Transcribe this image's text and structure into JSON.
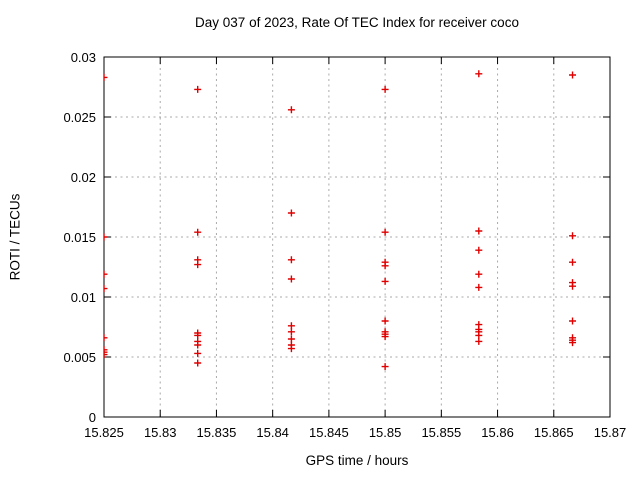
{
  "page": {
    "background": "#ffffff"
  },
  "chart_data": {
    "type": "scatter",
    "title": "Day 037 of 2023, Rate Of TEC Index for receiver coco",
    "xlabel": "GPS time / hours",
    "ylabel": "ROTI / TECUs",
    "xlim": [
      15.825,
      15.87
    ],
    "ylim": [
      0,
      0.03
    ],
    "xticks": {
      "values": [
        15.825,
        15.83,
        15.835,
        15.84,
        15.845,
        15.85,
        15.855,
        15.86,
        15.865,
        15.87
      ],
      "labels": [
        "15.825",
        "15.83",
        "15.835",
        "15.84",
        "15.845",
        "15.85",
        "15.855",
        "15.86",
        "15.865",
        "15.87"
      ]
    },
    "yticks": {
      "values": [
        0,
        0.005,
        0.01,
        0.015,
        0.02,
        0.025,
        0.03
      ],
      "labels": [
        "0",
        "0.005",
        "0.01",
        "0.015",
        "0.02",
        "0.025",
        "0.03"
      ]
    },
    "grid": true,
    "legend": "none",
    "marker": {
      "shape": "plus",
      "color": "#e00000",
      "size": 7
    },
    "axis_color": "#000000",
    "grid_color": "#aaaaaa",
    "series": [
      {
        "name": "roti",
        "points": [
          [
            15.825,
            0.0283
          ],
          [
            15.825,
            0.015
          ],
          [
            15.825,
            0.0119
          ],
          [
            15.825,
            0.0107
          ],
          [
            15.825,
            0.0066
          ],
          [
            15.825,
            0.0056
          ],
          [
            15.825,
            0.0054
          ],
          [
            15.825,
            0.0052
          ],
          [
            15.833333,
            0.0273
          ],
          [
            15.833333,
            0.0154
          ],
          [
            15.833333,
            0.0131
          ],
          [
            15.833333,
            0.0127
          ],
          [
            15.833333,
            0.007
          ],
          [
            15.833333,
            0.0068
          ],
          [
            15.833333,
            0.0063
          ],
          [
            15.833333,
            0.006
          ],
          [
            15.833333,
            0.0053
          ],
          [
            15.833333,
            0.0045
          ],
          [
            15.841667,
            0.0256
          ],
          [
            15.841667,
            0.017
          ],
          [
            15.841667,
            0.0131
          ],
          [
            15.841667,
            0.0115
          ],
          [
            15.841667,
            0.0076
          ],
          [
            15.841667,
            0.0071
          ],
          [
            15.841667,
            0.0065
          ],
          [
            15.841667,
            0.006
          ],
          [
            15.841667,
            0.0057
          ],
          [
            15.85,
            0.0273
          ],
          [
            15.85,
            0.0154
          ],
          [
            15.85,
            0.0129
          ],
          [
            15.85,
            0.0126
          ],
          [
            15.85,
            0.0113
          ],
          [
            15.85,
            0.008
          ],
          [
            15.85,
            0.0071
          ],
          [
            15.85,
            0.0069
          ],
          [
            15.85,
            0.0067
          ],
          [
            15.85,
            0.0042
          ],
          [
            15.858333,
            0.0286
          ],
          [
            15.858333,
            0.0155
          ],
          [
            15.858333,
            0.0139
          ],
          [
            15.858333,
            0.0119
          ],
          [
            15.858333,
            0.0108
          ],
          [
            15.858333,
            0.0077
          ],
          [
            15.858333,
            0.0073
          ],
          [
            15.858333,
            0.0071
          ],
          [
            15.858333,
            0.0068
          ],
          [
            15.858333,
            0.0063
          ],
          [
            15.866667,
            0.0285
          ],
          [
            15.866667,
            0.0151
          ],
          [
            15.866667,
            0.0129
          ],
          [
            15.866667,
            0.0112
          ],
          [
            15.866667,
            0.0109
          ],
          [
            15.866667,
            0.008
          ],
          [
            15.866667,
            0.0066
          ],
          [
            15.866667,
            0.0064
          ],
          [
            15.866667,
            0.0062
          ]
        ]
      }
    ]
  }
}
